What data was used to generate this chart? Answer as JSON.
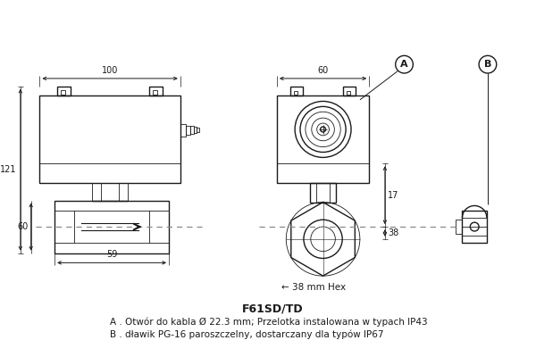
{
  "title": "F61SD/TD",
  "note_a": "A . Otwór do kabla Ø 22.3 mm; Przelotka instalowana w typach IP43",
  "note_b": "B . dławik PG-16 paroszczelny, dostarczany dla typów IP67",
  "bg_color": "#ffffff",
  "lc": "#1a1a1a",
  "dc": "#1a1a1a",
  "dsh": "#888888",
  "lw": 1.0,
  "lw_thin": 0.6
}
